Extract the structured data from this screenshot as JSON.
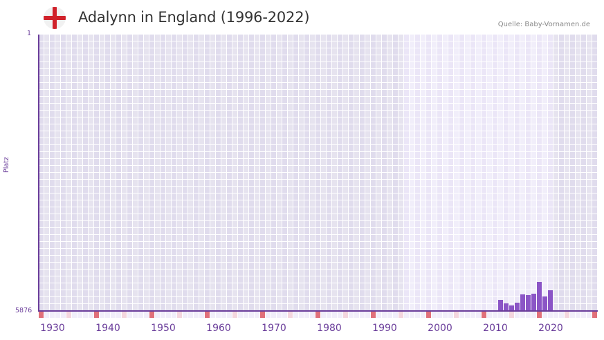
{
  "header": {
    "title": "Adalynn in England (1996-2022)",
    "source": "Quelle: Baby-Vornamen.de",
    "flag_icon": "england-flag-icon"
  },
  "colors": {
    "accent": "#6a3d9a",
    "bar": "#8b55c6",
    "decade_marker": "#e0707a",
    "half_decade_marker": "#f4d6de",
    "bg_dark_a": "#e0dced",
    "bg_dark_b": "#e6e3ef",
    "bg_light_a": "#ebe6f7",
    "bg_light_b": "#f1eefa"
  },
  "chart_data": {
    "type": "bar",
    "title": "Adalynn in England (1996-2022)",
    "xlabel": "",
    "ylabel": "Platz",
    "y_axis_inverted": true,
    "ylim": [
      5876,
      1
    ],
    "y_ticks": [
      "1",
      "5876"
    ],
    "x_range": [
      1928,
      2028
    ],
    "x_ticks": [
      1930,
      1940,
      1950,
      1960,
      1970,
      1980,
      1990,
      2000,
      2010,
      2020
    ],
    "highlight_range": [
      1994,
      2020
    ],
    "grid": true,
    "legend": null,
    "categories": [
      2011,
      2012,
      2013,
      2014,
      2015,
      2016,
      2017,
      2018,
      2019,
      2020
    ],
    "values": [
      5641,
      5714,
      5758,
      5700,
      5524,
      5538,
      5509,
      5259,
      5567,
      5435
    ],
    "source": "Quelle: Baby-Vornamen.de"
  },
  "axis": {
    "y_title": "Platz",
    "y_top": "1",
    "y_bottom": "5876"
  }
}
